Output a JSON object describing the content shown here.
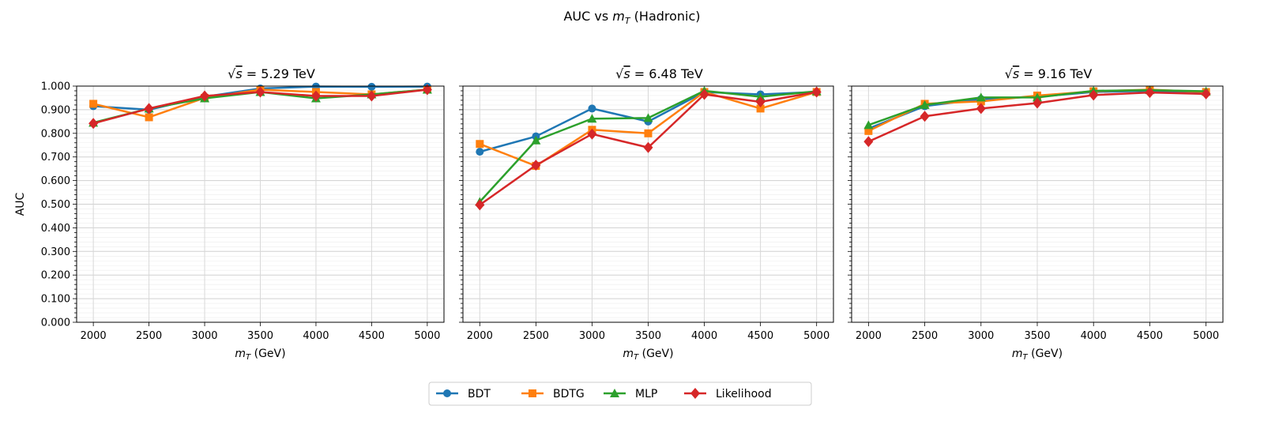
{
  "chart_data": {
    "suptitle": "AUC vs m_T (Hadronic)",
    "suptitle_parts": {
      "prefix": "AUC vs ",
      "var": "m",
      "sub": "T",
      "suffix": " (Hadronic)"
    },
    "type": "line",
    "shared_y": true,
    "ylabel": "AUC",
    "ylim": [
      0,
      1
    ],
    "yticks": [
      "0.000",
      "0.100",
      "0.200",
      "0.300",
      "0.400",
      "0.500",
      "0.600",
      "0.700",
      "0.800",
      "0.900",
      "1.000"
    ],
    "xlabel": "m_T (GeV)",
    "xlabel_parts": {
      "var": "m",
      "sub": "T",
      "suffix": " (GeV)"
    },
    "x": [
      2000,
      2500,
      3000,
      3500,
      4000,
      4500,
      5000
    ],
    "xlim": [
      1850,
      5150
    ],
    "grid": true,
    "legend_placement": "bottom-center",
    "series_styles": [
      {
        "name": "BDT",
        "color": "#1f77b4",
        "marker": "circle"
      },
      {
        "name": "BDTG",
        "color": "#ff7f0e",
        "marker": "square"
      },
      {
        "name": "MLP",
        "color": "#2ca02c",
        "marker": "triangle"
      },
      {
        "name": "Likelihood",
        "color": "#d62728",
        "marker": "diamond"
      }
    ],
    "panels": [
      {
        "title": "= 5.29 TeV",
        "series": [
          {
            "name": "BDT",
            "values": [
              0.915,
              0.9,
              0.955,
              0.99,
              0.998,
              0.997,
              0.998
            ]
          },
          {
            "name": "BDTG",
            "values": [
              0.925,
              0.868,
              0.95,
              0.985,
              0.975,
              0.965,
              0.985
            ]
          },
          {
            "name": "MLP",
            "values": [
              0.845,
              0.905,
              0.948,
              0.975,
              0.948,
              0.965,
              0.985
            ]
          },
          {
            "name": "Likelihood",
            "values": [
              0.842,
              0.905,
              0.958,
              0.975,
              0.958,
              0.958,
              0.985
            ]
          }
        ]
      },
      {
        "title": "= 6.48 TeV",
        "series": [
          {
            "name": "BDT",
            "values": [
              0.722,
              0.787,
              0.905,
              0.85,
              0.975,
              0.965,
              0.975
            ]
          },
          {
            "name": "BDTG",
            "values": [
              0.755,
              0.662,
              0.815,
              0.8,
              0.975,
              0.905,
              0.975
            ]
          },
          {
            "name": "MLP",
            "values": [
              0.51,
              0.77,
              0.862,
              0.865,
              0.98,
              0.955,
              0.978
            ]
          },
          {
            "name": "Likelihood",
            "values": [
              0.497,
              0.665,
              0.797,
              0.74,
              0.965,
              0.933,
              0.975
            ]
          }
        ]
      },
      {
        "title": "= 9.16 TeV",
        "series": [
          {
            "name": "BDT",
            "values": [
              0.82,
              0.915,
              0.945,
              0.955,
              0.975,
              0.98,
              0.975
            ]
          },
          {
            "name": "BDTG",
            "values": [
              0.81,
              0.925,
              0.935,
              0.96,
              0.978,
              0.985,
              0.975
            ]
          },
          {
            "name": "MLP",
            "values": [
              0.835,
              0.92,
              0.952,
              0.952,
              0.98,
              0.983,
              0.978
            ]
          },
          {
            "name": "Likelihood",
            "values": [
              0.765,
              0.872,
              0.905,
              0.928,
              0.962,
              0.973,
              0.967
            ]
          }
        ]
      }
    ]
  }
}
